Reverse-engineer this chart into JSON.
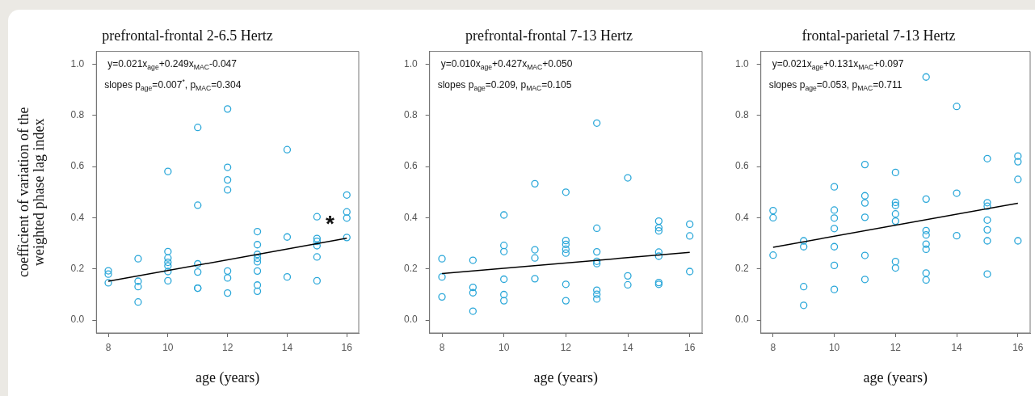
{
  "chart_data": [
    {
      "type": "scatter",
      "title": "prefrontal-frontal 2-6.5 Hertz",
      "xlabel": "age (years)",
      "ylabel": "coefficient of variation of the weighted phase lag index",
      "marker": "circle",
      "xlim": [
        7.6,
        16.4
      ],
      "xticks": [
        8,
        10,
        12,
        14,
        16
      ],
      "ylim": [
        -0.05,
        1.05
      ],
      "yticks": [
        {
          "value": 0,
          "label": "0.0"
        },
        {
          "value": 0.2,
          "label": "0.2"
        },
        {
          "value": 0.4,
          "label": "0.4"
        },
        {
          "value": 0.6,
          "label": "0.6"
        },
        {
          "value": 0.8,
          "label": "0.8"
        },
        {
          "value": 1,
          "label": "1.0"
        }
      ],
      "annotations": [
        "y=0.021x$_{age}$+0.249x$_{MAC}$-0.047",
        "slopes p$_{age}$=0.007$^{*}$, p$_{MAC}$=0.304",
        "*"
      ],
      "series": [
        {
          "color": "#2aa7d9",
          "x": [
            8,
            8,
            8,
            9,
            9,
            9,
            9,
            10,
            10,
            10,
            10,
            10,
            10,
            10,
            11,
            11,
            11,
            11,
            11,
            11,
            12,
            12,
            12,
            12,
            12,
            12,
            12,
            13,
            13,
            13,
            13,
            13,
            13,
            13,
            13,
            14,
            14,
            14,
            15,
            15,
            15,
            15,
            15,
            15,
            16,
            16,
            16,
            16
          ],
          "values": [
            0.193,
            0.18,
            0.146,
            0.24,
            0.152,
            0.131,
            0.071,
            0.581,
            0.268,
            0.243,
            0.226,
            0.212,
            0.19,
            0.154,
            0.753,
            0.449,
            0.22,
            0.188,
            0.125,
            0.125,
            0.825,
            0.597,
            0.548,
            0.509,
            0.192,
            0.165,
            0.106,
            0.346,
            0.295,
            0.257,
            0.242,
            0.228,
            0.192,
            0.137,
            0.113,
            0.666,
            0.325,
            0.169,
            0.404,
            0.319,
            0.308,
            0.291,
            0.247,
            0.154,
            0.489,
            0.423,
            0.399,
            0.323
          ]
        },
        {
          "type": "line",
          "color": "#000000",
          "marker": "none",
          "x": [
            8,
            16
          ],
          "values": [
            0.152,
            0.32
          ]
        }
      ]
    },
    {
      "type": "scatter",
      "title": "prefrontal-frontal 7-13 Hertz",
      "xlabel": "age (years)",
      "marker": "circle",
      "xlim": [
        7.6,
        16.4
      ],
      "xticks": [
        8,
        10,
        12,
        14,
        16
      ],
      "ylim": [
        -0.05,
        1.05
      ],
      "yticks": [
        {
          "value": 0,
          "label": "0.0"
        },
        {
          "value": 0.2,
          "label": "0.2"
        },
        {
          "value": 0.4,
          "label": "0.4"
        },
        {
          "value": 0.6,
          "label": "0.6"
        },
        {
          "value": 0.8,
          "label": "0.8"
        },
        {
          "value": 1,
          "label": "1.0"
        }
      ],
      "annotations": [
        "y=0.010x$_{age}$+0.427x$_{MAC}$+0.050",
        "slopes p$_{age}$=0.209, p$_{MAC}$=0.105"
      ],
      "series": [
        {
          "color": "#2aa7d9",
          "x": [
            8,
            8,
            8,
            9,
            9,
            9,
            9,
            10,
            10,
            10,
            10,
            10,
            10,
            11,
            11,
            11,
            11,
            12,
            12,
            12,
            12,
            12,
            12,
            12,
            13,
            13,
            13,
            13,
            13,
            13,
            13,
            13,
            14,
            14,
            14,
            15,
            15,
            15,
            15,
            15,
            15,
            15,
            16,
            16,
            16
          ],
          "values": [
            0.24,
            0.169,
            0.091,
            0.234,
            0.128,
            0.107,
            0.035,
            0.411,
            0.292,
            0.268,
            0.16,
            0.1,
            0.076,
            0.533,
            0.275,
            0.243,
            0.162,
            0.5,
            0.311,
            0.296,
            0.277,
            0.262,
            0.14,
            0.076,
            0.77,
            0.359,
            0.267,
            0.23,
            0.221,
            0.117,
            0.101,
            0.083,
            0.556,
            0.173,
            0.138,
            0.387,
            0.361,
            0.349,
            0.266,
            0.25,
            0.147,
            0.14,
            0.375,
            0.329,
            0.19
          ]
        },
        {
          "type": "line",
          "color": "#000000",
          "marker": "none",
          "x": [
            8,
            16
          ],
          "values": [
            0.182,
            0.265
          ]
        }
      ]
    },
    {
      "type": "scatter",
      "title": "frontal-parietal 7-13 Hertz",
      "xlabel": "age (years)",
      "marker": "circle",
      "xlim": [
        7.6,
        16.4
      ],
      "xticks": [
        8,
        10,
        12,
        14,
        16
      ],
      "ylim": [
        -0.05,
        1.05
      ],
      "yticks": [
        {
          "value": 0,
          "label": "0.0"
        },
        {
          "value": 0.2,
          "label": "0.2"
        },
        {
          "value": 0.4,
          "label": "0.4"
        },
        {
          "value": 0.6,
          "label": "0.6"
        },
        {
          "value": 0.8,
          "label": "0.8"
        },
        {
          "value": 1,
          "label": "1.0"
        }
      ],
      "annotations": [
        "y=0.021x$_{age}$+0.131x$_{MAC}$+0.097",
        "slopes p$_{age}$=0.053, p$_{MAC}$=0.711"
      ],
      "series": [
        {
          "color": "#2aa7d9",
          "x": [
            8,
            8,
            8,
            9,
            9,
            9,
            9,
            10,
            10,
            10,
            10,
            10,
            10,
            10,
            11,
            11,
            11,
            11,
            11,
            11,
            12,
            12,
            12,
            12,
            12,
            12,
            12,
            13,
            13,
            13,
            13,
            13,
            13,
            13,
            13,
            14,
            14,
            14,
            15,
            15,
            15,
            15,
            15,
            15,
            15,
            16,
            16,
            16,
            16
          ],
          "values": [
            0.428,
            0.4,
            0.254,
            0.31,
            0.287,
            0.131,
            0.058,
            0.521,
            0.43,
            0.399,
            0.358,
            0.287,
            0.214,
            0.12,
            0.608,
            0.486,
            0.458,
            0.402,
            0.253,
            0.159,
            0.577,
            0.46,
            0.448,
            0.415,
            0.387,
            0.229,
            0.204,
            0.95,
            0.473,
            0.35,
            0.333,
            0.297,
            0.277,
            0.184,
            0.157,
            0.835,
            0.496,
            0.33,
            0.631,
            0.459,
            0.445,
            0.391,
            0.353,
            0.31,
            0.18,
            0.641,
            0.619,
            0.55,
            0.31
          ]
        },
        {
          "type": "line",
          "color": "#000000",
          "marker": "none",
          "x": [
            8,
            16
          ],
          "values": [
            0.285,
            0.457
          ]
        }
      ]
    }
  ]
}
